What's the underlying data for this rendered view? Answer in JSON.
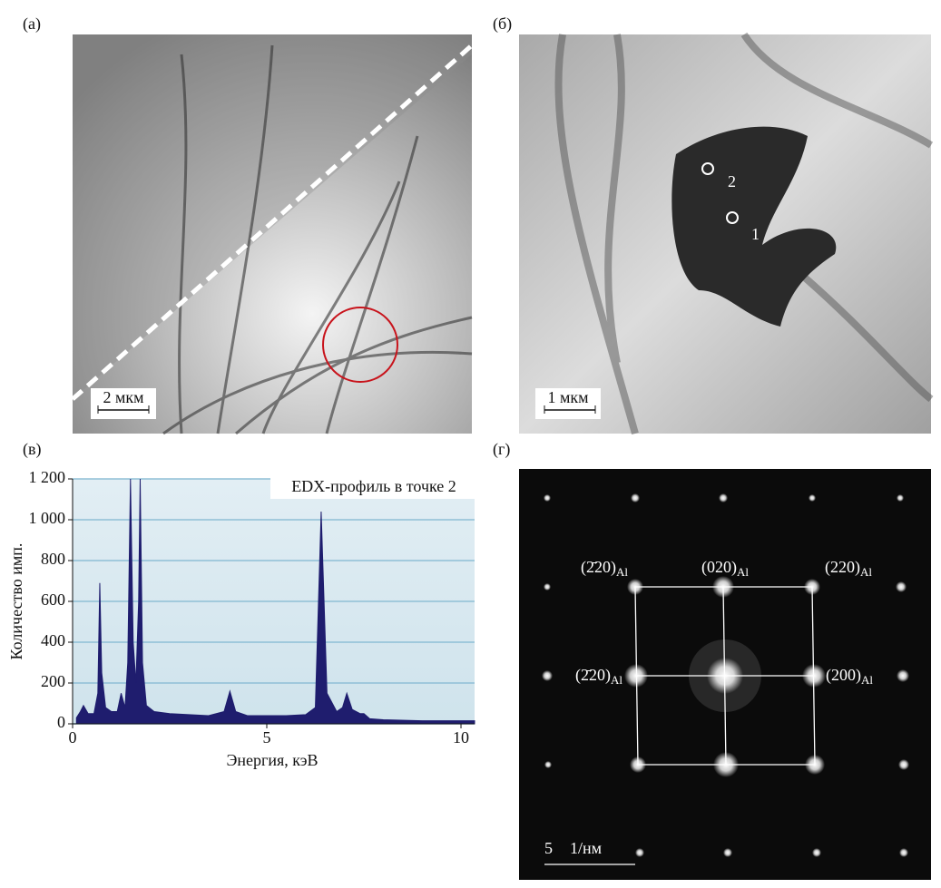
{
  "panels": {
    "a": {
      "label": "(а)",
      "scale_bar": "2 мкм"
    },
    "b": {
      "label": "(б)",
      "scale_bar": "1 мкм",
      "points": [
        "1",
        "2"
      ]
    },
    "c": {
      "label": "(в)"
    },
    "d": {
      "label": "(г)",
      "reflections": [
        {
          "index": "(2̄20)",
          "sub": "Al"
        },
        {
          "index": "(020)",
          "sub": "Al"
        },
        {
          "index": "(220)",
          "sub": "Al"
        },
        {
          "index": "(2̄20)",
          "sub": "Al"
        },
        {
          "index": "(200)",
          "sub": "Al"
        }
      ],
      "scale_bar": {
        "value": "5",
        "unit": "1/нм"
      }
    }
  },
  "chart_data": {
    "type": "area",
    "annotation": "EDX-профиль в точке 2",
    "x_label": "Энергия, кэВ",
    "y_label": "Количество имп.",
    "x": [
      0.1,
      0.2,
      0.28,
      0.4,
      0.55,
      0.65,
      0.7,
      0.75,
      0.85,
      1.0,
      1.15,
      1.25,
      1.35,
      1.42,
      1.49,
      1.56,
      1.63,
      1.7,
      1.74,
      1.8,
      1.9,
      2.1,
      2.5,
      3.0,
      3.5,
      3.9,
      4.05,
      4.2,
      4.5,
      5.0,
      5.5,
      6.0,
      6.25,
      6.4,
      6.55,
      6.8,
      6.95,
      7.06,
      7.2,
      7.4,
      7.5,
      7.65,
      8.0,
      9.0,
      10.0,
      10.35
    ],
    "values": [
      30,
      60,
      90,
      50,
      50,
      150,
      690,
      250,
      80,
      60,
      60,
      150,
      80,
      300,
      1200,
      400,
      200,
      600,
      1200,
      300,
      90,
      60,
      50,
      45,
      40,
      60,
      160,
      60,
      40,
      40,
      40,
      45,
      80,
      1040,
      150,
      60,
      80,
      150,
      70,
      50,
      50,
      25,
      20,
      15,
      15,
      15
    ],
    "color": "#1f1d6e",
    "xlim": [
      0,
      10.35
    ],
    "xticks": [
      0,
      5,
      10
    ],
    "ylim": [
      0,
      1200
    ],
    "yticks": [
      0,
      200,
      400,
      600,
      800,
      {
        "value": 1000,
        "label": "1 000"
      },
      {
        "value": 1200,
        "label": "1 200"
      }
    ],
    "grid": true
  }
}
